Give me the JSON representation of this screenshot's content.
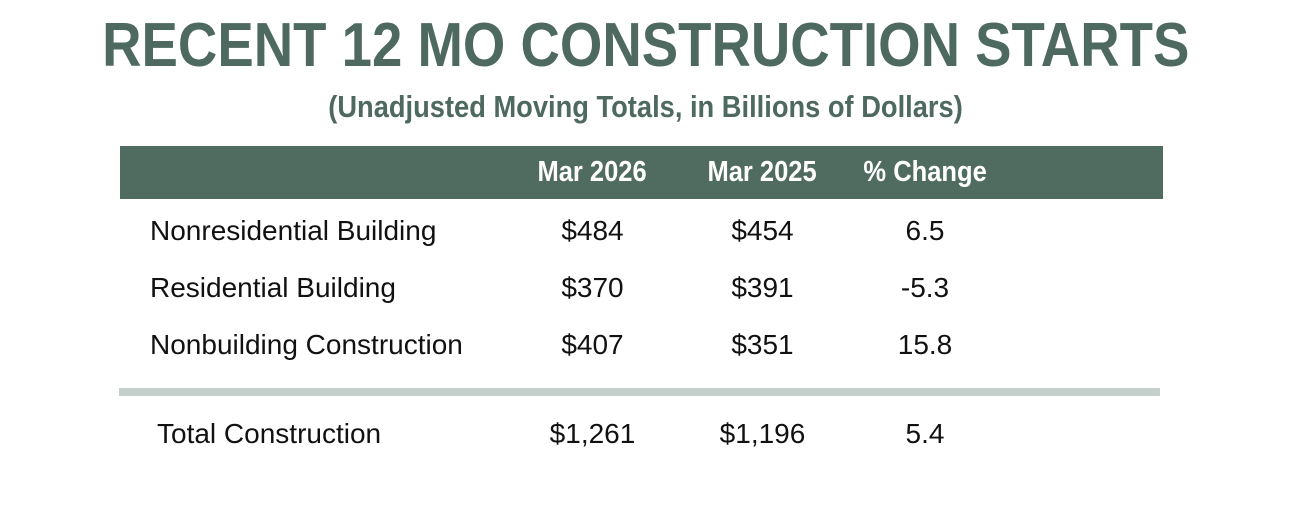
{
  "header": {
    "title": "RECENT 12 MO CONSTRUCTION STARTS",
    "subtitle": "(Unadjusted Moving Totals, in Billions of Dollars)"
  },
  "table": {
    "columns": [
      "",
      "Mar 2026",
      "Mar 2025",
      "% Change"
    ],
    "rows": [
      {
        "label": "Nonresidential Building",
        "mar2026": "$484",
        "mar2025": "$454",
        "pct_change": "6.5"
      },
      {
        "label": "Residential Building",
        "mar2026": "$370",
        "mar2025": "$391",
        "pct_change": "-5.3"
      },
      {
        "label": "Nonbuilding Construction",
        "mar2026": "$407",
        "mar2025": "$351",
        "pct_change": "15.8"
      }
    ],
    "total": {
      "label": "Total Construction",
      "mar2026": "$1,261",
      "mar2025": "$1,196",
      "pct_change": "5.4"
    }
  },
  "chart_data": {
    "type": "table",
    "title": "RECENT 12 MO CONSTRUCTION STARTS",
    "subtitle": "(Unadjusted Moving Totals, in Billions of Dollars)",
    "units": "Billions of Dollars",
    "columns": [
      "",
      "Mar 2026",
      "Mar 2025",
      "% Change"
    ],
    "rows": [
      [
        "Nonresidential Building",
        484,
        454,
        6.5
      ],
      [
        "Residential Building",
        370,
        391,
        -5.3
      ],
      [
        "Nonbuilding Construction",
        407,
        351,
        15.8
      ],
      [
        "Total Construction",
        1261,
        1196,
        5.4
      ]
    ]
  },
  "colors": {
    "accent_green": "#4E6A60",
    "header_bar_bg": "#506B60",
    "header_text": "#FFFFFF",
    "separator": "#C5CFCB",
    "body_text": "#111111",
    "background": "#FFFFFF"
  }
}
